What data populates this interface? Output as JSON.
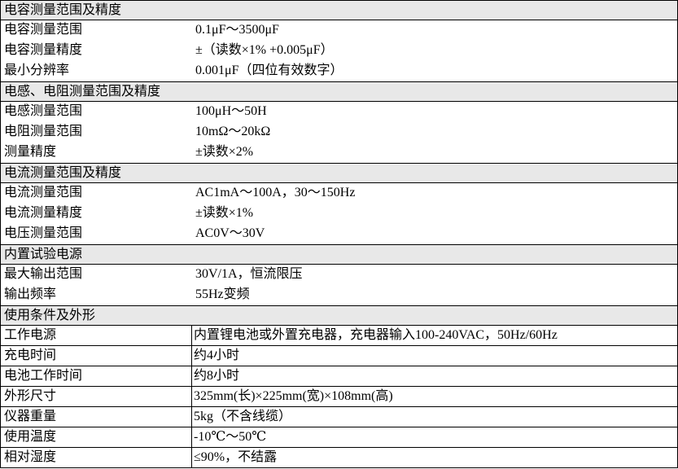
{
  "sections": [
    {
      "title": "电容测量范围及精度",
      "bordered": false,
      "rows": [
        [
          "电容测量范围",
          "0.1μF～3500μF"
        ],
        [
          "电容测量精度",
          "±（读数×1% +0.005μF）"
        ],
        [
          "最小分辨率",
          "0.001μF（四位有效数字）"
        ]
      ]
    },
    {
      "title": "电感、电阻测量范围及精度",
      "bordered": false,
      "rows": [
        [
          "电感测量范围",
          "100μH～50H"
        ],
        [
          "电阻测量范围",
          "10mΩ～20kΩ"
        ],
        [
          "测量精度",
          "±读数×2%"
        ]
      ]
    },
    {
      "title": "电流测量范围及精度",
      "bordered": false,
      "rows": [
        [
          "电流测量范围",
          "AC1mA～100A，30～150Hz"
        ],
        [
          "电流测量精度",
          "±读数×1%"
        ],
        [
          "电压测量范围",
          "AC0V～30V"
        ]
      ]
    },
    {
      "title": "内置试验电源",
      "bordered": false,
      "rows": [
        [
          "最大输出范围",
          "30V/1A，恒流限压"
        ],
        [
          "输出频率",
          "55Hz变频"
        ]
      ]
    },
    {
      "title": "使用条件及外形",
      "bordered": true,
      "rows": [
        [
          "工作电源",
          "内置锂电池或外置充电器，充电器输入100-240VAC，50Hz/60Hz"
        ],
        [
          "充电时间",
          "约4小时"
        ],
        [
          "电池工作时间",
          "约8小时"
        ],
        [
          "外形尺寸",
          "325mm(长)×225mm(宽)×108mm(高)"
        ],
        [
          "仪器重量",
          "5kg（不含线缆）"
        ],
        [
          "使用温度",
          "-10℃～50℃"
        ],
        [
          "相对湿度",
          "≤90%，不结露"
        ]
      ]
    }
  ]
}
